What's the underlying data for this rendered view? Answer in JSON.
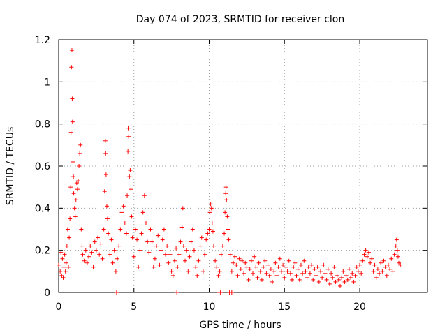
{
  "chart_data": {
    "type": "scatter",
    "title": "Day 074 of 2023, SRMTID for receiver clon",
    "xlabel": "GPS time / hours",
    "ylabel": "SRMTID / TECUs",
    "xlim": [
      0,
      24.5
    ],
    "ylim": [
      0,
      1.2
    ],
    "xticks": [
      0,
      5,
      10,
      15,
      20
    ],
    "xtick_labels": [
      "0",
      "5",
      "10",
      "15",
      "20"
    ],
    "yticks": [
      0,
      0.2,
      0.4,
      0.6,
      0.8,
      1.0,
      1.2
    ],
    "ytick_labels": [
      "0",
      "0.2",
      "0.4",
      "0.6",
      "0.8",
      "1",
      "1.2"
    ],
    "grid": true,
    "marker": "+",
    "color": "#ff0000",
    "series": [
      {
        "name": "SRMTID",
        "points": [
          [
            0.0,
            0.13
          ],
          [
            0.1,
            0.1
          ],
          [
            0.15,
            0.19
          ],
          [
            0.2,
            0.08
          ],
          [
            0.25,
            0.16
          ],
          [
            0.3,
            0.07
          ],
          [
            0.35,
            0.12
          ],
          [
            0.4,
            0.18
          ],
          [
            0.45,
            0.1
          ],
          [
            0.5,
            0.14
          ],
          [
            0.55,
            0.22
          ],
          [
            0.6,
            0.3
          ],
          [
            0.65,
            0.12
          ],
          [
            0.7,
            0.26
          ],
          [
            0.75,
            0.35
          ],
          [
            0.8,
            0.5
          ],
          [
            0.82,
            0.76
          ],
          [
            0.85,
            1.07
          ],
          [
            0.88,
            1.15
          ],
          [
            0.9,
            0.92
          ],
          [
            0.92,
            0.81
          ],
          [
            0.95,
            0.62
          ],
          [
            0.98,
            0.55
          ],
          [
            1.0,
            0.47
          ],
          [
            1.05,
            0.4
          ],
          [
            1.1,
            0.36
          ],
          [
            1.15,
            0.44
          ],
          [
            1.2,
            0.52
          ],
          [
            1.25,
            0.49
          ],
          [
            1.3,
            0.53
          ],
          [
            1.35,
            0.6
          ],
          [
            1.4,
            0.66
          ],
          [
            1.45,
            0.7
          ],
          [
            1.5,
            0.3
          ],
          [
            1.55,
            0.22
          ],
          [
            1.6,
            0.18
          ],
          [
            1.7,
            0.15
          ],
          [
            1.8,
            0.2
          ],
          [
            1.9,
            0.14
          ],
          [
            2.0,
            0.17
          ],
          [
            2.1,
            0.22
          ],
          [
            2.2,
            0.19
          ],
          [
            2.3,
            0.12
          ],
          [
            2.4,
            0.24
          ],
          [
            2.5,
            0.2
          ],
          [
            2.6,
            0.26
          ],
          [
            2.7,
            0.18
          ],
          [
            2.8,
            0.23
          ],
          [
            2.9,
            0.16
          ],
          [
            3.0,
            0.3
          ],
          [
            3.05,
            0.48
          ],
          [
            3.1,
            0.72
          ],
          [
            3.12,
            0.66
          ],
          [
            3.15,
            0.56
          ],
          [
            3.2,
            0.41
          ],
          [
            3.25,
            0.35
          ],
          [
            3.3,
            0.28
          ],
          [
            3.4,
            0.18
          ],
          [
            3.5,
            0.25
          ],
          [
            3.6,
            0.14
          ],
          [
            3.7,
            0.2
          ],
          [
            3.8,
            0.1
          ],
          [
            3.9,
            0.16
          ],
          [
            4.0,
            0.22
          ],
          [
            4.1,
            0.3
          ],
          [
            4.2,
            0.38
          ],
          [
            4.3,
            0.41
          ],
          [
            4.4,
            0.33
          ],
          [
            4.5,
            0.28
          ],
          [
            4.55,
            0.46
          ],
          [
            4.6,
            0.67
          ],
          [
            4.62,
            0.78
          ],
          [
            4.65,
            0.74
          ],
          [
            4.7,
            0.55
          ],
          [
            4.75,
            0.58
          ],
          [
            4.8,
            0.49
          ],
          [
            4.85,
            0.36
          ],
          [
            4.9,
            0.26
          ],
          [
            5.0,
            0.17
          ],
          [
            5.1,
            0.3
          ],
          [
            5.2,
            0.25
          ],
          [
            5.3,
            0.12
          ],
          [
            5.4,
            0.2
          ],
          [
            5.5,
            0.28
          ],
          [
            5.6,
            0.38
          ],
          [
            5.7,
            0.46
          ],
          [
            5.8,
            0.33
          ],
          [
            5.9,
            0.24
          ],
          [
            6.0,
            0.19
          ],
          [
            6.1,
            0.3
          ],
          [
            6.2,
            0.24
          ],
          [
            6.3,
            0.12
          ],
          [
            6.4,
            0.16
          ],
          [
            6.5,
            0.22
          ],
          [
            6.6,
            0.27
          ],
          [
            6.7,
            0.13
          ],
          [
            6.8,
            0.2
          ],
          [
            6.9,
            0.25
          ],
          [
            7.0,
            0.3
          ],
          [
            7.1,
            0.18
          ],
          [
            7.2,
            0.22
          ],
          [
            7.3,
            0.14
          ],
          [
            7.4,
            0.18
          ],
          [
            7.5,
            0.1
          ],
          [
            7.6,
            0.08
          ],
          [
            7.7,
            0.15
          ],
          [
            7.8,
            0.21
          ],
          [
            7.9,
            0.12
          ],
          [
            8.0,
            0.18
          ],
          [
            8.1,
            0.24
          ],
          [
            8.2,
            0.31
          ],
          [
            8.25,
            0.4
          ],
          [
            8.3,
            0.22
          ],
          [
            8.4,
            0.15
          ],
          [
            8.5,
            0.2
          ],
          [
            8.6,
            0.1
          ],
          [
            8.7,
            0.17
          ],
          [
            8.8,
            0.24
          ],
          [
            8.9,
            0.3
          ],
          [
            9.0,
            0.2
          ],
          [
            9.1,
            0.12
          ],
          [
            9.2,
            0.08
          ],
          [
            9.3,
            0.15
          ],
          [
            9.4,
            0.22
          ],
          [
            9.5,
            0.26
          ],
          [
            9.6,
            0.1
          ],
          [
            9.7,
            0.18
          ],
          [
            9.8,
            0.25
          ],
          [
            9.9,
            0.28
          ],
          [
            10.0,
            0.3
          ],
          [
            10.05,
            0.38
          ],
          [
            10.1,
            0.42
          ],
          [
            10.15,
            0.4
          ],
          [
            10.2,
            0.33
          ],
          [
            10.25,
            0.29
          ],
          [
            10.3,
            0.22
          ],
          [
            10.4,
            0.15
          ],
          [
            10.5,
            0.12
          ],
          [
            10.6,
            0.08
          ],
          [
            10.7,
            0.1
          ],
          [
            10.8,
            0.18
          ],
          [
            10.9,
            0.22
          ],
          [
            11.0,
            0.28
          ],
          [
            11.05,
            0.38
          ],
          [
            11.1,
            0.47
          ],
          [
            11.12,
            0.5
          ],
          [
            11.15,
            0.44
          ],
          [
            11.2,
            0.36
          ],
          [
            11.25,
            0.3
          ],
          [
            11.3,
            0.25
          ],
          [
            11.4,
            0.18
          ],
          [
            11.5,
            0.1
          ],
          [
            11.6,
            0.14
          ],
          [
            11.7,
            0.17
          ],
          [
            11.8,
            0.13
          ],
          [
            11.9,
            0.08
          ],
          [
            12.0,
            0.16
          ],
          [
            12.1,
            0.11
          ],
          [
            12.2,
            0.15
          ],
          [
            12.3,
            0.09
          ],
          [
            12.4,
            0.14
          ],
          [
            12.5,
            0.12
          ],
          [
            12.6,
            0.06
          ],
          [
            12.7,
            0.11
          ],
          [
            12.8,
            0.15
          ],
          [
            12.9,
            0.09
          ],
          [
            13.0,
            0.17
          ],
          [
            13.1,
            0.12
          ],
          [
            13.2,
            0.07
          ],
          [
            13.3,
            0.14
          ],
          [
            13.4,
            0.1
          ],
          [
            13.5,
            0.06
          ],
          [
            13.6,
            0.12
          ],
          [
            13.7,
            0.15
          ],
          [
            13.8,
            0.09
          ],
          [
            13.9,
            0.13
          ],
          [
            14.0,
            0.08
          ],
          [
            14.1,
            0.11
          ],
          [
            14.2,
            0.05
          ],
          [
            14.3,
            0.1
          ],
          [
            14.4,
            0.14
          ],
          [
            14.5,
            0.08
          ],
          [
            14.6,
            0.12
          ],
          [
            14.7,
            0.16
          ],
          [
            14.8,
            0.1
          ],
          [
            14.9,
            0.13
          ],
          [
            15.0,
            0.07
          ],
          [
            15.1,
            0.12
          ],
          [
            15.2,
            0.1
          ],
          [
            15.3,
            0.15
          ],
          [
            15.4,
            0.09
          ],
          [
            15.5,
            0.06
          ],
          [
            15.6,
            0.12
          ],
          [
            15.7,
            0.14
          ],
          [
            15.8,
            0.08
          ],
          [
            15.9,
            0.11
          ],
          [
            16.0,
            0.06
          ],
          [
            16.1,
            0.13
          ],
          [
            16.2,
            0.09
          ],
          [
            16.3,
            0.15
          ],
          [
            16.4,
            0.1
          ],
          [
            16.5,
            0.07
          ],
          [
            16.6,
            0.12
          ],
          [
            16.7,
            0.09
          ],
          [
            16.8,
            0.13
          ],
          [
            16.9,
            0.06
          ],
          [
            17.0,
            0.11
          ],
          [
            17.1,
            0.08
          ],
          [
            17.2,
            0.12
          ],
          [
            17.3,
            0.05
          ],
          [
            17.4,
            0.1
          ],
          [
            17.5,
            0.07
          ],
          [
            17.6,
            0.13
          ],
          [
            17.7,
            0.09
          ],
          [
            17.8,
            0.06
          ],
          [
            17.9,
            0.11
          ],
          [
            18.0,
            0.04
          ],
          [
            18.1,
            0.09
          ],
          [
            18.2,
            0.07
          ],
          [
            18.3,
            0.12
          ],
          [
            18.4,
            0.05
          ],
          [
            18.5,
            0.08
          ],
          [
            18.6,
            0.06
          ],
          [
            18.7,
            0.03
          ],
          [
            18.8,
            0.07
          ],
          [
            18.9,
            0.1
          ],
          [
            19.0,
            0.05
          ],
          [
            19.1,
            0.08
          ],
          [
            19.2,
            0.06
          ],
          [
            19.3,
            0.11
          ],
          [
            19.4,
            0.07
          ],
          [
            19.5,
            0.09
          ],
          [
            19.6,
            0.05
          ],
          [
            19.7,
            0.08
          ],
          [
            19.8,
            0.12
          ],
          [
            19.9,
            0.1
          ],
          [
            20.0,
            0.13
          ],
          [
            20.1,
            0.09
          ],
          [
            20.2,
            0.15
          ],
          [
            20.3,
            0.18
          ],
          [
            20.4,
            0.2
          ],
          [
            20.5,
            0.17
          ],
          [
            20.6,
            0.19
          ],
          [
            20.7,
            0.14
          ],
          [
            20.8,
            0.16
          ],
          [
            20.9,
            0.1
          ],
          [
            21.0,
            0.13
          ],
          [
            21.1,
            0.07
          ],
          [
            21.2,
            0.11
          ],
          [
            21.3,
            0.09
          ],
          [
            21.4,
            0.14
          ],
          [
            21.5,
            0.1
          ],
          [
            21.6,
            0.15
          ],
          [
            21.7,
            0.12
          ],
          [
            21.8,
            0.08
          ],
          [
            21.9,
            0.13
          ],
          [
            22.0,
            0.11
          ],
          [
            22.1,
            0.16
          ],
          [
            22.2,
            0.1
          ],
          [
            22.3,
            0.18
          ],
          [
            22.4,
            0.22
          ],
          [
            22.45,
            0.25
          ],
          [
            22.5,
            0.2
          ],
          [
            22.55,
            0.17
          ],
          [
            22.6,
            0.14
          ],
          [
            22.7,
            0.13
          ],
          [
            3.85,
            0.0
          ],
          [
            7.85,
            0.0
          ],
          [
            10.65,
            0.0
          ],
          [
            10.75,
            0.0
          ],
          [
            11.35,
            0.0
          ],
          [
            11.5,
            0.0
          ]
        ]
      }
    ]
  }
}
